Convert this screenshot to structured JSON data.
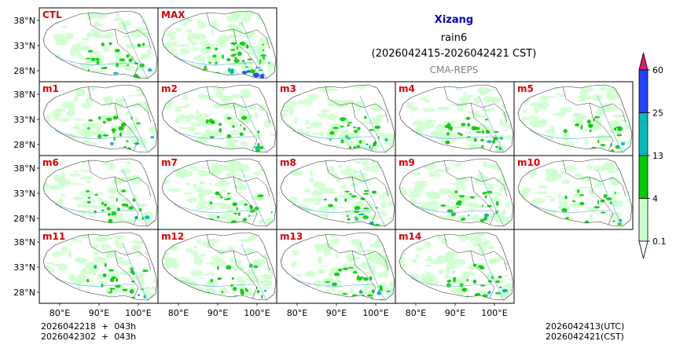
{
  "header": {
    "title": "Xizang",
    "variable": "rain6",
    "period": "(2026042415-2026042421 CST)",
    "source": "CMA-REPS",
    "title_color": "#0000cc",
    "source_color": "#808080"
  },
  "panels": [
    {
      "label": "CTL",
      "intensity": 0.5
    },
    {
      "label": "MAX",
      "intensity": 1.0
    },
    {
      "label": "m1",
      "intensity": 0.45
    },
    {
      "label": "m2",
      "intensity": 0.4
    },
    {
      "label": "m3",
      "intensity": 0.55
    },
    {
      "label": "m4",
      "intensity": 0.6
    },
    {
      "label": "m5",
      "intensity": 0.5
    },
    {
      "label": "m6",
      "intensity": 0.45
    },
    {
      "label": "m7",
      "intensity": 0.5
    },
    {
      "label": "m8",
      "intensity": 0.5
    },
    {
      "label": "m9",
      "intensity": 0.45
    },
    {
      "label": "m10",
      "intensity": 0.4
    },
    {
      "label": "m11",
      "intensity": 0.55
    },
    {
      "label": "m12",
      "intensity": 0.45
    },
    {
      "label": "m13",
      "intensity": 0.6
    },
    {
      "label": "m14",
      "intensity": 0.45
    }
  ],
  "panel_label_color": "#dd0000",
  "lat_ticks": [
    "38°N",
    "33°N",
    "28°N"
  ],
  "lon_ticks": [
    "80°E",
    "90°E",
    "100°E"
  ],
  "colorbar": {
    "levels": [
      "0.1",
      "4",
      "13",
      "25",
      "60"
    ],
    "colors": [
      "#ccffcc",
      "#00cc00",
      "#00bbbb",
      "#2244ff"
    ],
    "over_color": "#dd1a6b",
    "under_color": "#ffffff"
  },
  "footer": {
    "left_line1": "2026042218  +  043h",
    "left_line2": "2026042302  +  043h",
    "right_line1": "2026042413(UTC)",
    "right_line2": "2026042421(CST)"
  }
}
